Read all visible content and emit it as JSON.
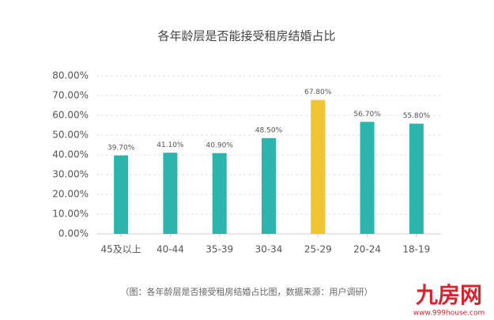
{
  "chart_data": {
    "type": "bar",
    "title": "各年龄层是否能接受租房结婚占比",
    "categories": [
      "45及以上",
      "40-44",
      "35-39",
      "30-34",
      "25-29",
      "20-24",
      "18-19"
    ],
    "values": [
      39.7,
      41.1,
      40.9,
      48.5,
      67.8,
      56.7,
      55.8
    ],
    "value_labels": [
      "39.70%",
      "41.10%",
      "40.90%",
      "48.50%",
      "67.80%",
      "56.70%",
      "55.80%"
    ],
    "colors": [
      "#2bb5ad",
      "#2bb5ad",
      "#2bb5ad",
      "#2bb5ad",
      "#f2c431",
      "#2bb5ad",
      "#2bb5ad"
    ],
    "ylim": [
      0,
      80
    ],
    "yticks": [
      {
        "value": 0,
        "label": "0.00%"
      },
      {
        "value": 10,
        "label": "10.00%"
      },
      {
        "value": 20,
        "label": "20.00%"
      },
      {
        "value": 30,
        "label": "30.00%"
      },
      {
        "value": 40,
        "label": "40.00%"
      },
      {
        "value": 50,
        "label": "50.00%"
      },
      {
        "value": 60,
        "label": "60.00%"
      },
      {
        "value": 70,
        "label": "70.00%"
      },
      {
        "value": 80,
        "label": "80.00%"
      }
    ],
    "grid": true,
    "footnote": "（图：各年龄层是否接受租房结婚占比图，数据来源：用户调研）"
  },
  "watermark": {
    "brand": "九房网",
    "url": "www.999house.com"
  }
}
